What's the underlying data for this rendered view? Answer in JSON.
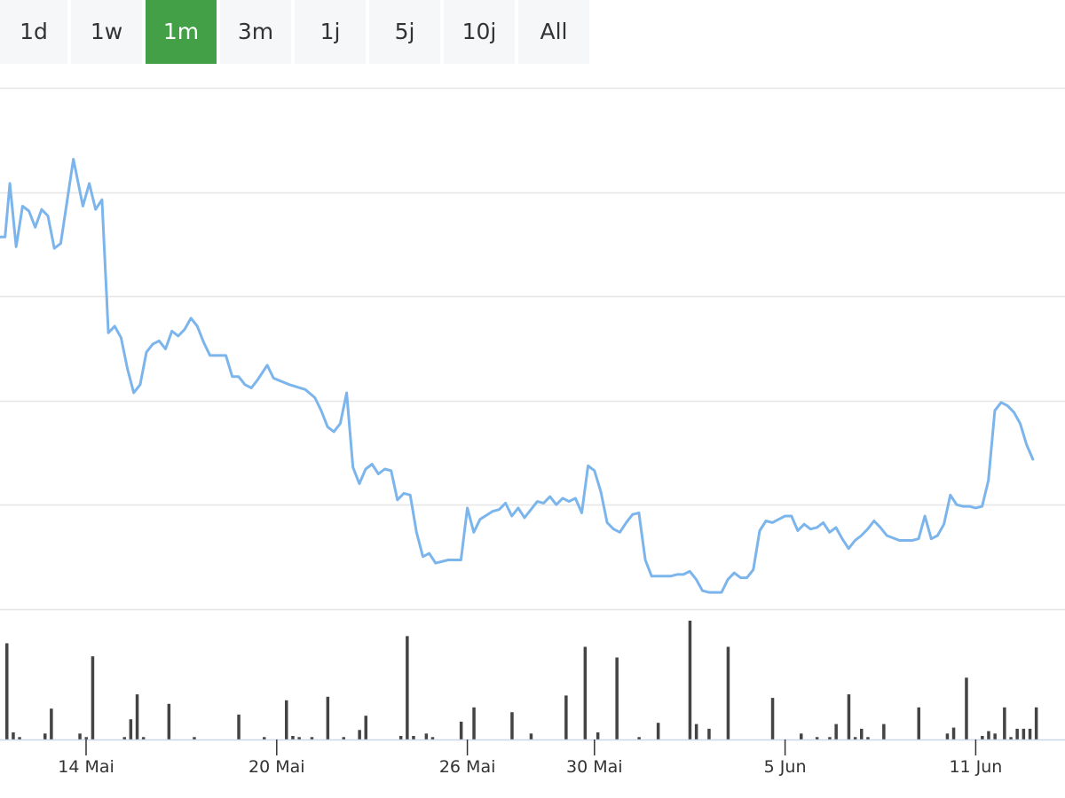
{
  "range_selector": {
    "buttons": [
      {
        "label": "1d"
      },
      {
        "label": "1w"
      },
      {
        "label": "1m"
      },
      {
        "label": "3m"
      },
      {
        "label": "1j"
      },
      {
        "label": "5j"
      },
      {
        "label": "10j"
      },
      {
        "label": "All"
      }
    ],
    "active": "1m"
  },
  "colors": {
    "line": "#7cb5ec",
    "volume": "#444444",
    "active_button": "#43a047",
    "button": "#f6f7f8",
    "grid": "#e6e6e6"
  },
  "chart_data": {
    "type": "line",
    "title": "",
    "xlabel": "",
    "ylabel": "",
    "grid": true,
    "y_gridlines": 6,
    "x_ticks": [
      {
        "label": "14 Mai",
        "x": 14
      },
      {
        "label": "20 Mai",
        "x": 20
      },
      {
        "label": "26 Mai",
        "x": 26
      },
      {
        "label": "30 Mai",
        "x": 30
      },
      {
        "label": "5 Jun",
        "x": 36
      },
      {
        "label": "11 Jun",
        "x": 42
      }
    ],
    "price_series": {
      "name": "",
      "points": [
        [
          11.45,
          0.37
        ],
        [
          11.6,
          0.7
        ],
        [
          11.8,
          0.31
        ],
        [
          12.0,
          0.56
        ],
        [
          12.2,
          0.53
        ],
        [
          12.4,
          0.43
        ],
        [
          12.6,
          0.54
        ],
        [
          12.8,
          0.5
        ],
        [
          13.0,
          0.3
        ],
        [
          13.2,
          0.33
        ],
        [
          13.6,
          0.85
        ],
        [
          13.9,
          0.56
        ],
        [
          14.1,
          0.7
        ],
        [
          14.3,
          0.54
        ],
        [
          14.5,
          0.6
        ],
        [
          14.7,
          -0.22
        ],
        [
          14.9,
          -0.18
        ],
        [
          15.1,
          -0.25
        ],
        [
          15.3,
          -0.44
        ],
        [
          15.5,
          -0.59
        ],
        [
          15.7,
          -0.54
        ],
        [
          15.9,
          -0.34
        ],
        [
          16.1,
          -0.29
        ],
        [
          16.3,
          -0.27
        ],
        [
          16.5,
          -0.32
        ],
        [
          16.7,
          -0.21
        ],
        [
          16.9,
          -0.24
        ],
        [
          17.1,
          -0.2
        ],
        [
          17.3,
          -0.13
        ],
        [
          17.5,
          -0.18
        ],
        [
          17.7,
          -0.28
        ],
        [
          17.9,
          -0.36
        ],
        [
          18.1,
          -0.36
        ],
        [
          18.4,
          -0.36
        ],
        [
          18.6,
          -0.49
        ],
        [
          18.8,
          -0.49
        ],
        [
          19.0,
          -0.54
        ],
        [
          19.2,
          -0.56
        ],
        [
          19.4,
          -0.51
        ],
        [
          19.7,
          -0.42
        ],
        [
          19.9,
          -0.5
        ],
        [
          20.4,
          -0.54
        ],
        [
          20.9,
          -0.57
        ],
        [
          21.2,
          -0.62
        ],
        [
          21.4,
          -0.7
        ],
        [
          21.6,
          -0.8
        ],
        [
          21.8,
          -0.83
        ],
        [
          22.0,
          -0.78
        ],
        [
          22.2,
          -0.59
        ],
        [
          22.4,
          -1.05
        ],
        [
          22.6,
          -1.15
        ],
        [
          22.8,
          -1.06
        ],
        [
          23.0,
          -1.03
        ],
        [
          23.2,
          -1.09
        ],
        [
          23.4,
          -1.06
        ],
        [
          23.6,
          -1.07
        ],
        [
          23.8,
          -1.25
        ],
        [
          24.0,
          -1.21
        ],
        [
          24.2,
          -1.22
        ],
        [
          24.4,
          -1.45
        ],
        [
          24.6,
          -1.6
        ],
        [
          24.8,
          -1.58
        ],
        [
          25.0,
          -1.64
        ],
        [
          25.4,
          -1.62
        ],
        [
          25.8,
          -1.62
        ],
        [
          26.0,
          -1.3
        ],
        [
          26.2,
          -1.45
        ],
        [
          26.4,
          -1.37
        ],
        [
          26.8,
          -1.32
        ],
        [
          27.0,
          -1.31
        ],
        [
          27.2,
          -1.27
        ],
        [
          27.4,
          -1.35
        ],
        [
          27.6,
          -1.3
        ],
        [
          27.8,
          -1.36
        ],
        [
          28.2,
          -1.26
        ],
        [
          28.4,
          -1.27
        ],
        [
          28.6,
          -1.23
        ],
        [
          28.8,
          -1.28
        ],
        [
          29.0,
          -1.24
        ],
        [
          29.2,
          -1.26
        ],
        [
          29.4,
          -1.24
        ],
        [
          29.6,
          -1.33
        ],
        [
          29.8,
          -1.04
        ],
        [
          30.0,
          -1.07
        ],
        [
          30.2,
          -1.2
        ],
        [
          30.4,
          -1.39
        ],
        [
          30.6,
          -1.43
        ],
        [
          30.8,
          -1.45
        ],
        [
          31.0,
          -1.39
        ],
        [
          31.2,
          -1.34
        ],
        [
          31.4,
          -1.33
        ],
        [
          31.6,
          -1.62
        ],
        [
          31.8,
          -1.72
        ],
        [
          32.2,
          -1.72
        ],
        [
          32.4,
          -1.72
        ],
        [
          32.6,
          -1.71
        ],
        [
          32.8,
          -1.71
        ],
        [
          33.0,
          -1.69
        ],
        [
          33.2,
          -1.74
        ],
        [
          33.4,
          -1.81
        ],
        [
          33.6,
          -1.82
        ],
        [
          34.0,
          -1.82
        ],
        [
          34.2,
          -1.74
        ],
        [
          34.4,
          -1.7
        ],
        [
          34.6,
          -1.73
        ],
        [
          34.8,
          -1.73
        ],
        [
          35.0,
          -1.68
        ],
        [
          35.2,
          -1.44
        ],
        [
          35.4,
          -1.38
        ],
        [
          35.6,
          -1.39
        ],
        [
          35.8,
          -1.37
        ],
        [
          36.0,
          -1.35
        ],
        [
          36.2,
          -1.35
        ],
        [
          36.4,
          -1.44
        ],
        [
          36.6,
          -1.4
        ],
        [
          36.8,
          -1.43
        ],
        [
          37.0,
          -1.42
        ],
        [
          37.2,
          -1.39
        ],
        [
          37.4,
          -1.45
        ],
        [
          37.6,
          -1.42
        ],
        [
          37.8,
          -1.49
        ],
        [
          38.0,
          -1.55
        ],
        [
          38.2,
          -1.5
        ],
        [
          38.4,
          -1.47
        ],
        [
          38.6,
          -1.43
        ],
        [
          38.8,
          -1.38
        ],
        [
          39.0,
          -1.42
        ],
        [
          39.2,
          -1.47
        ],
        [
          39.6,
          -1.5
        ],
        [
          40.0,
          -1.5
        ],
        [
          40.2,
          -1.49
        ],
        [
          40.4,
          -1.35
        ],
        [
          40.6,
          -1.49
        ],
        [
          40.8,
          -1.47
        ],
        [
          41.0,
          -1.4
        ],
        [
          41.2,
          -1.22
        ],
        [
          41.4,
          -1.28
        ],
        [
          41.6,
          -1.29
        ],
        [
          41.8,
          -1.29
        ],
        [
          42.0,
          -1.3
        ],
        [
          42.2,
          -1.29
        ],
        [
          42.4,
          -1.13
        ],
        [
          42.6,
          -0.7
        ],
        [
          42.8,
          -0.65
        ],
        [
          43.0,
          -0.67
        ],
        [
          43.2,
          -0.71
        ],
        [
          43.4,
          -0.78
        ],
        [
          43.6,
          -0.91
        ],
        [
          43.8,
          -1.0
        ]
      ]
    },
    "volume_series": {
      "name": "",
      "points": [
        [
          11.5,
          0.81
        ],
        [
          11.7,
          0.06
        ],
        [
          11.9,
          0.02
        ],
        [
          12.7,
          0.05
        ],
        [
          12.9,
          0.26
        ],
        [
          13.8,
          0.05
        ],
        [
          14.0,
          0.02
        ],
        [
          14.2,
          0.7
        ],
        [
          15.2,
          0.02
        ],
        [
          15.4,
          0.17
        ],
        [
          15.6,
          0.38
        ],
        [
          15.8,
          0.02
        ],
        [
          16.6,
          0.3
        ],
        [
          17.4,
          0.02
        ],
        [
          18.8,
          0.21
        ],
        [
          19.6,
          0.02
        ],
        [
          20.3,
          0.33
        ],
        [
          20.5,
          0.03
        ],
        [
          20.7,
          0.02
        ],
        [
          21.1,
          0.02
        ],
        [
          21.6,
          0.36
        ],
        [
          22.1,
          0.02
        ],
        [
          22.6,
          0.08
        ],
        [
          22.8,
          0.2
        ],
        [
          23.9,
          0.03
        ],
        [
          24.1,
          0.87
        ],
        [
          24.3,
          0.03
        ],
        [
          24.7,
          0.05
        ],
        [
          24.9,
          0.02
        ],
        [
          25.8,
          0.15
        ],
        [
          26.2,
          0.27
        ],
        [
          27.4,
          0.23
        ],
        [
          28.0,
          0.05
        ],
        [
          29.1,
          0.37
        ],
        [
          29.7,
          0.78
        ],
        [
          30.1,
          0.06
        ],
        [
          30.7,
          0.69
        ],
        [
          31.4,
          0.02
        ],
        [
          32.0,
          0.14
        ],
        [
          33.0,
          1.0
        ],
        [
          33.2,
          0.13
        ],
        [
          33.6,
          0.09
        ],
        [
          34.2,
          0.78
        ],
        [
          35.6,
          0.35
        ],
        [
          36.5,
          0.05
        ],
        [
          37.0,
          0.02
        ],
        [
          37.4,
          0.02
        ],
        [
          37.6,
          0.13
        ],
        [
          38.0,
          0.38
        ],
        [
          38.2,
          0.02
        ],
        [
          38.4,
          0.09
        ],
        [
          38.6,
          0.02
        ],
        [
          39.1,
          0.13
        ],
        [
          40.2,
          0.27
        ],
        [
          41.1,
          0.05
        ],
        [
          41.3,
          0.1
        ],
        [
          41.7,
          0.52
        ],
        [
          42.2,
          0.03
        ],
        [
          42.4,
          0.07
        ],
        [
          42.6,
          0.05
        ],
        [
          42.9,
          0.27
        ],
        [
          43.1,
          0.02
        ],
        [
          43.3,
          0.09
        ],
        [
          43.5,
          0.09
        ],
        [
          43.7,
          0.09
        ],
        [
          43.9,
          0.27
        ]
      ]
    }
  }
}
